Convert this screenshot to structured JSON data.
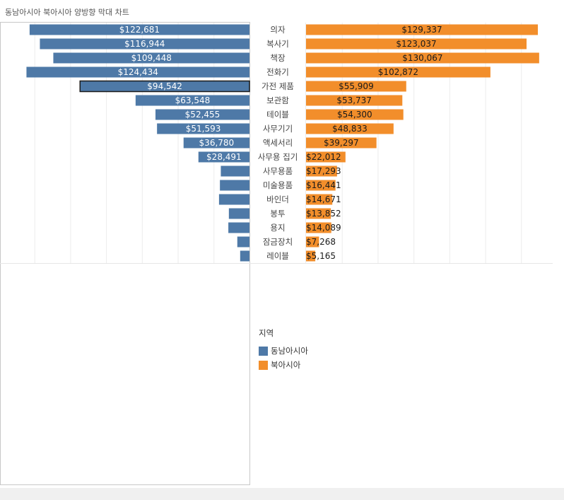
{
  "title": "동남아시아 북아시아 양방향 막대 차트",
  "legend": {
    "title": "지역",
    "items": [
      {
        "label": "동남아시아",
        "color": "#4e79a7"
      },
      {
        "label": "북아시아",
        "color": "#f28e2b"
      }
    ]
  },
  "colors": {
    "left": "#4e79a7",
    "right": "#f28e2b",
    "highlight_border": "#1a1a1a",
    "background": "#ffffff",
    "footer": "#f0f0f0"
  },
  "chart_data": {
    "type": "bar",
    "orientation": "horizontal-diverging",
    "categories": [
      "의자",
      "복사기",
      "책장",
      "전화기",
      "가전 제품",
      "보관함",
      "테이블",
      "사무기기",
      "액세서리",
      "사무용 집기",
      "사무용품",
      "미술용품",
      "바인더",
      "봉투",
      "용지",
      "잠금장치",
      "레이블"
    ],
    "series": [
      {
        "name": "동남아시아",
        "values": [
          122681,
          116944,
          109448,
          124434,
          94542,
          63548,
          52455,
          51593,
          36780,
          28491,
          16000,
          16500,
          17000,
          11500,
          11800,
          6800,
          5200
        ],
        "labels": [
          "$122,681",
          "$116,944",
          "$109,448",
          "$124,434",
          "$94,542",
          "$63,548",
          "$52,455",
          "$51,593",
          "$36,780",
          "$28,491",
          "",
          "",
          "",
          "",
          "",
          "",
          ""
        ]
      },
      {
        "name": "북아시아",
        "values": [
          129337,
          123037,
          130067,
          102872,
          55909,
          53737,
          54300,
          48833,
          39297,
          22012,
          17293,
          16441,
          14671,
          13852,
          14089,
          7268,
          5165
        ],
        "labels": [
          "$129,337",
          "$123,037",
          "$130,067",
          "$102,872",
          "$55,909",
          "$53,737",
          "$54,300",
          "$48,833",
          "$39,297",
          "$22,012",
          "$17,293",
          "$16,441",
          "$14,671",
          "$13,852",
          "$14,089",
          "$7,268",
          "$5,165"
        ]
      }
    ],
    "highlighted_category": "가전 제품",
    "xlim": [
      0,
      140000
    ],
    "grid": true
  }
}
